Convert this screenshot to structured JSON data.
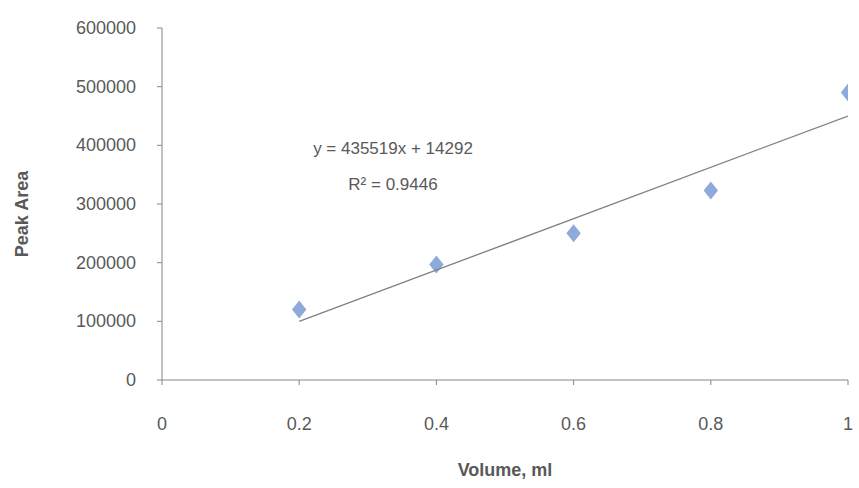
{
  "chart_data": {
    "type": "scatter",
    "x_label": "Volume, ml",
    "y_label": "Peak Area",
    "annotations": [
      "y = 435519x + 14292",
      "R² = 0.9446"
    ],
    "series": [
      {
        "type": "scatter",
        "marker": "diamond",
        "color": "#8eaadb",
        "x": [
          0.2,
          0.4,
          0.6,
          0.8,
          1
        ],
        "values": [
          120000,
          197000,
          250000,
          323000,
          490000
        ]
      },
      {
        "type": "line",
        "line_style": "solid",
        "color": "#808080",
        "x": [
          0.2,
          1
        ],
        "values": [
          100000,
          450000
        ]
      }
    ],
    "xlim": [
      0,
      1
    ],
    "xticks": [
      0,
      0.2,
      0.4,
      0.6,
      0.8,
      1
    ],
    "ylim": [
      0,
      600000
    ],
    "yticks": [
      0,
      100000,
      200000,
      300000,
      400000,
      500000,
      600000
    ],
    "grid": false
  }
}
